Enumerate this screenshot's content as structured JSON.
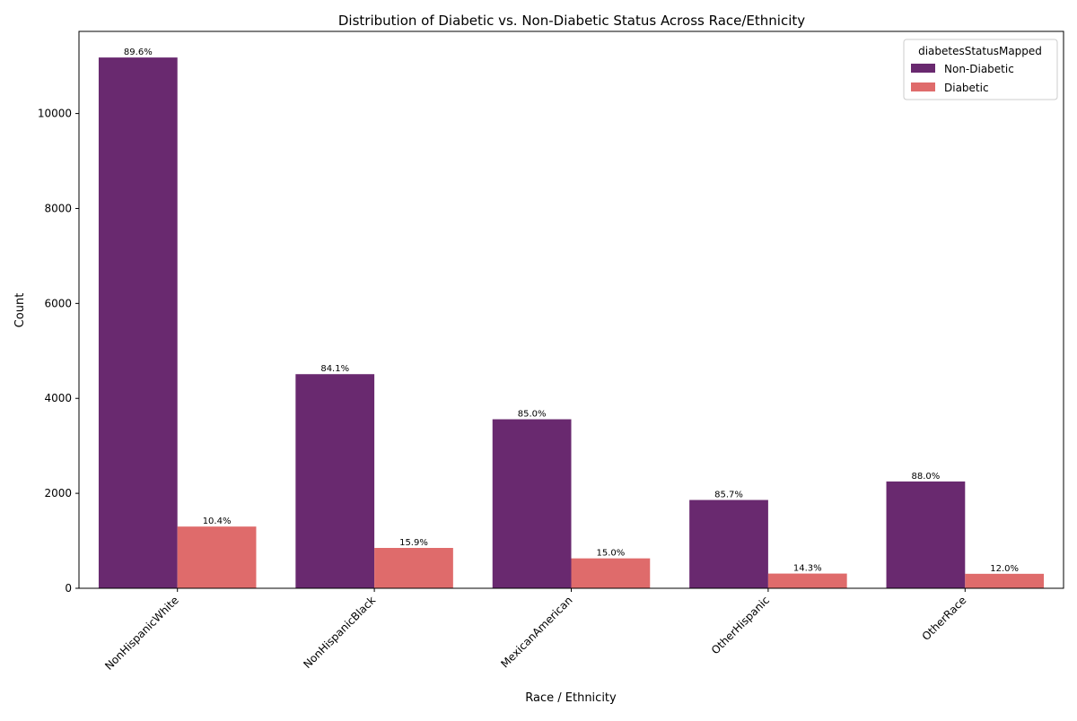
{
  "chart_data": {
    "type": "bar",
    "title": "Distribution of Diabetic vs. Non-Diabetic Status Across Race/Ethnicity",
    "xlabel": "Race / Ethnicity",
    "ylabel": "Count",
    "categories": [
      "NonHispanicWhite",
      "NonHispanicBlack",
      "MexicanAmerican",
      "OtherHispanic",
      "OtherRace"
    ],
    "series": [
      {
        "name": "Non-Diabetic",
        "color": "#69296f",
        "values": [
          11180,
          4510,
          3560,
          1860,
          2250
        ],
        "labels": [
          "89.6%",
          "84.1%",
          "85.0%",
          "85.7%",
          "88.0%"
        ]
      },
      {
        "name": "Diabetic",
        "color": "#df6b6b",
        "values": [
          1300,
          850,
          630,
          310,
          305
        ],
        "labels": [
          "10.4%",
          "15.9%",
          "15.0%",
          "14.3%",
          "12.0%"
        ]
      }
    ],
    "ylim": [
      0,
      11730
    ],
    "yticks": [
      0,
      2000,
      4000,
      6000,
      8000,
      10000
    ],
    "legend": {
      "title": "diabetesStatusMapped",
      "position": "top-right"
    },
    "grid": false
  }
}
